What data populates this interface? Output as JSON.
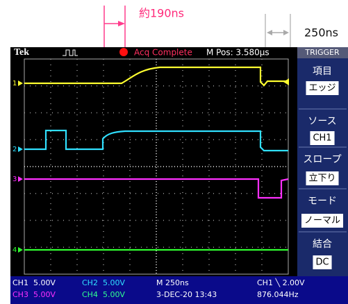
{
  "annotations": {
    "delay": "約190ns",
    "period": "250ns"
  },
  "header": {
    "brand": "Tek",
    "status": "Acq Complete",
    "position": "M Pos: 3.580µs"
  },
  "menu": {
    "title": "TRIGGER",
    "items": [
      {
        "label": "項目",
        "value": "エッジ"
      },
      {
        "label": "ソース",
        "value": "CH1"
      },
      {
        "label": "スロープ",
        "value": "立下り"
      },
      {
        "label": "モード",
        "value": "ノーマル"
      },
      {
        "label": "結合",
        "value": "DC"
      }
    ]
  },
  "channel_markers": [
    "1",
    "2",
    "3",
    "4"
  ],
  "status": {
    "rows": [
      [
        "CH1  5.00V",
        "CH2  5.00V",
        "M 250ns",
        "CH1 ╲ 2.00V"
      ],
      [
        "CH3  5.00V",
        "CH4  5.00V",
        "3-DEC-20 13:43",
        "876.044Hz"
      ]
    ]
  }
}
